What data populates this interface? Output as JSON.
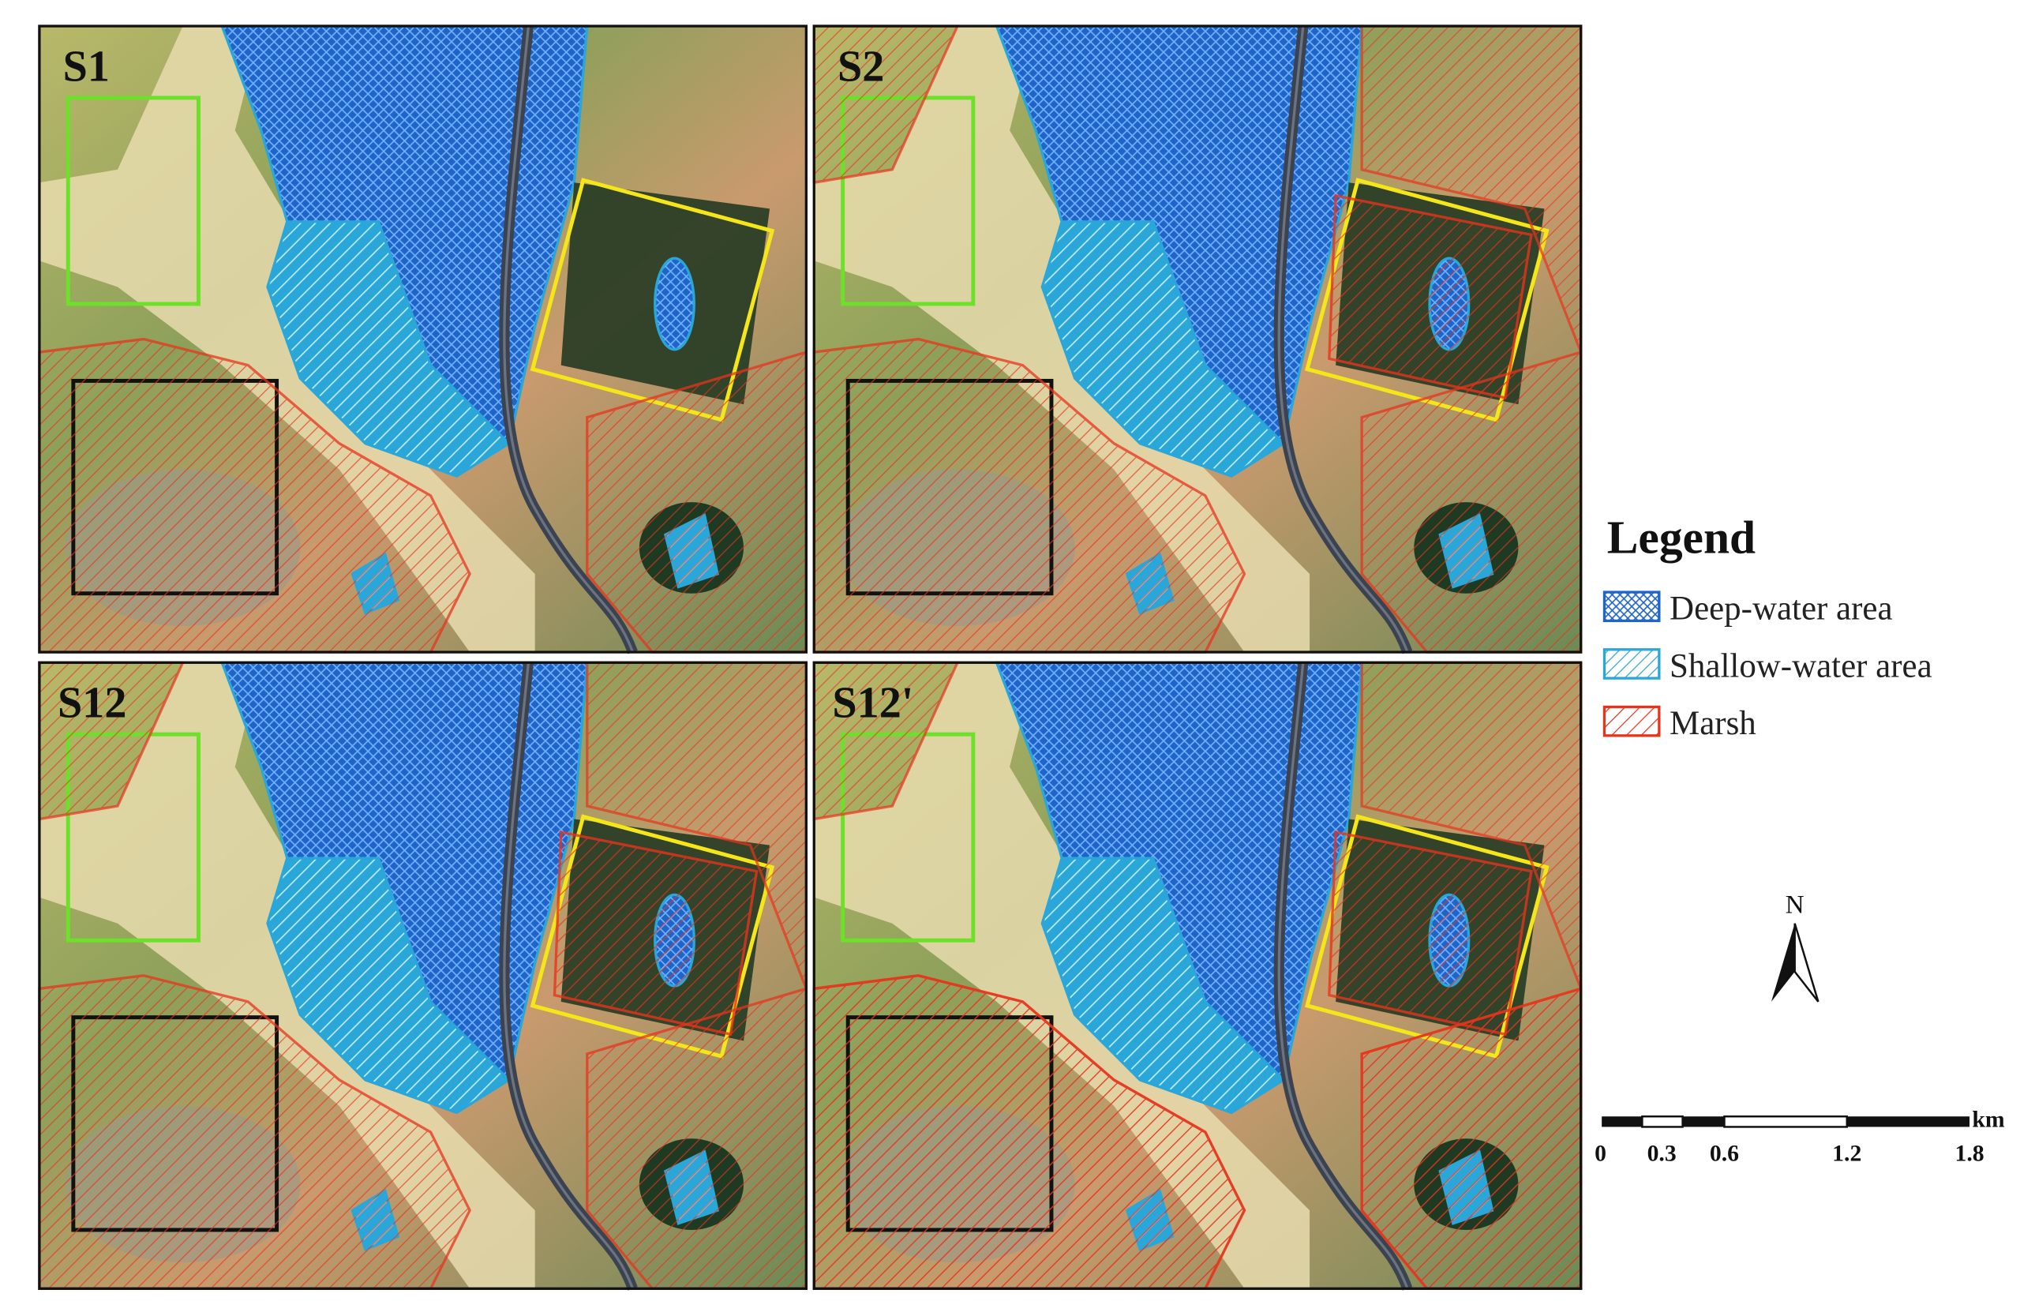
{
  "panels": [
    {
      "label": "S1"
    },
    {
      "label": "S2"
    },
    {
      "label": "S12"
    },
    {
      "label": "S12'"
    }
  ],
  "legend": {
    "title": "Legend",
    "items": [
      {
        "label": "Deep-water area"
      },
      {
        "label": "Shallow-water area"
      },
      {
        "label": "Marsh"
      }
    ]
  },
  "north_arrow": {
    "label": "N"
  },
  "scale_bar": {
    "labels": [
      "0",
      "0.3",
      "0.6",
      "1.2",
      "1.8"
    ],
    "unit": "km"
  }
}
